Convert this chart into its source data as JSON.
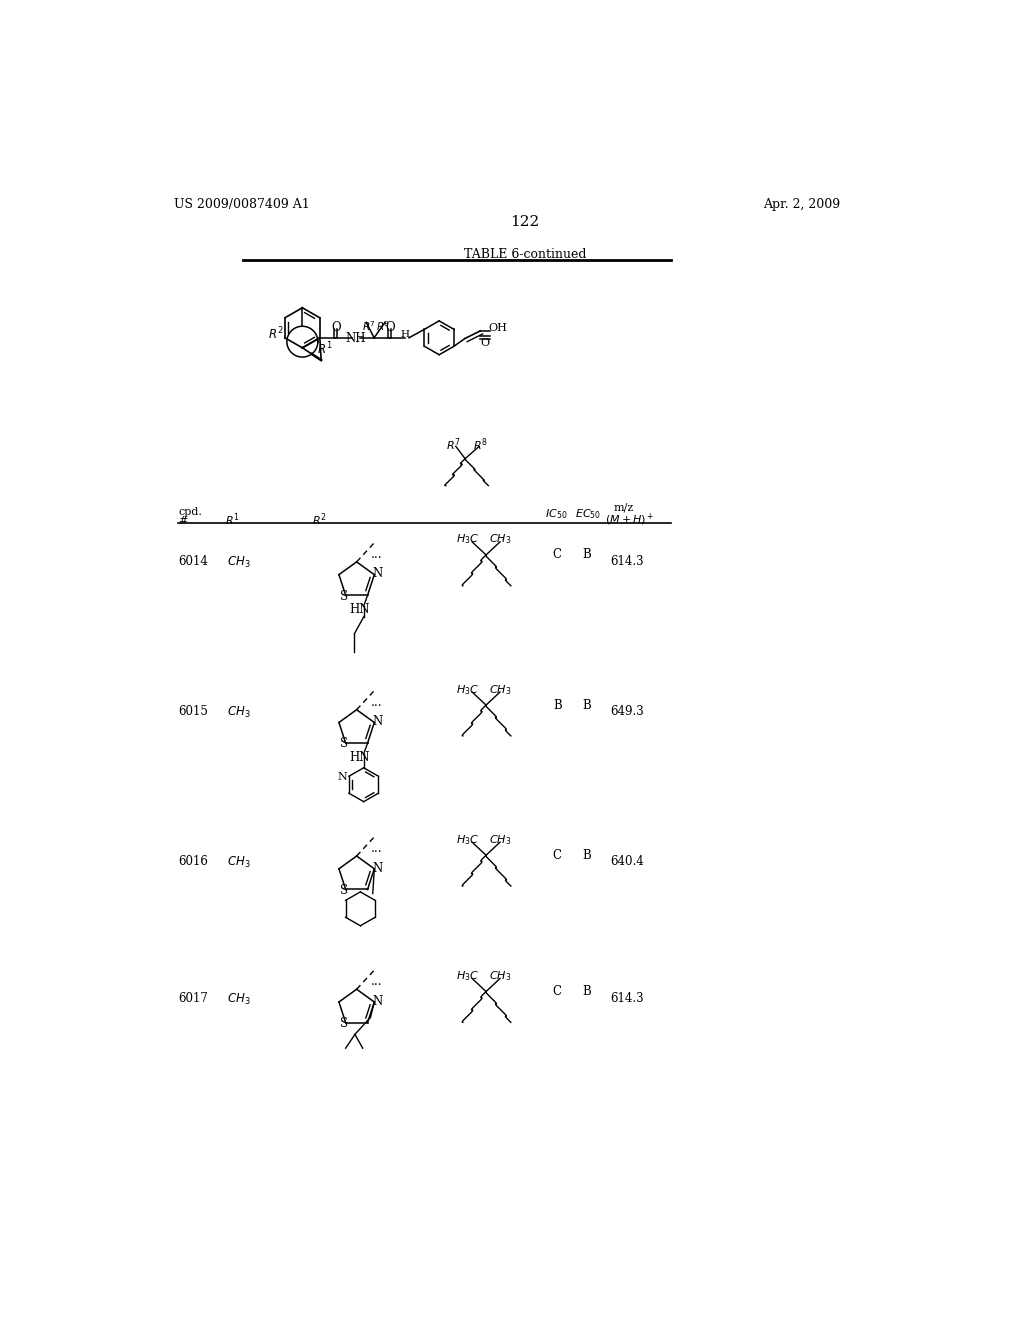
{
  "page_number": "122",
  "patent_number": "US 2009/0087409 A1",
  "patent_date": "Apr. 2, 2009",
  "table_title": "TABLE 6-continued",
  "background_color": "#ffffff",
  "text_color": "#000000",
  "rows": [
    {
      "cpd": "6014",
      "R1": "CH₃",
      "IC50": "C",
      "EC50": "B",
      "mz": "614.3"
    },
    {
      "cpd": "6015",
      "R1": "CH₃",
      "IC50": "B",
      "EC50": "B",
      "mz": "649.3"
    },
    {
      "cpd": "6016",
      "R1": "CH₃",
      "IC50": "C",
      "EC50": "B",
      "mz": "640.4"
    },
    {
      "cpd": "6017",
      "R1": "CH₃",
      "IC50": "C",
      "EC50": "B",
      "mz": "614.3"
    }
  ]
}
